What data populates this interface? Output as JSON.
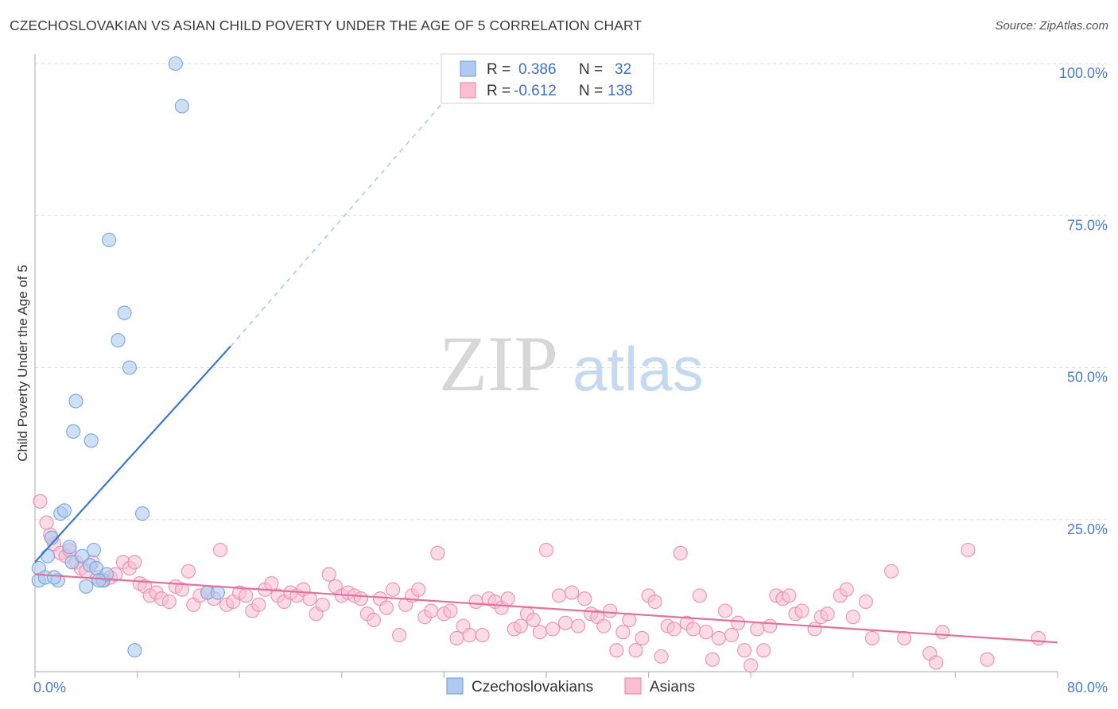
{
  "title": "CZECHOSLOVAKIAN VS ASIAN CHILD POVERTY UNDER THE AGE OF 5 CORRELATION CHART",
  "source": "Source: ZipAtlas.com",
  "watermark": {
    "zip": "ZIP",
    "atlas": "atlas"
  },
  "colors": {
    "blue_fill": "#aecbef",
    "blue_stroke": "#7aa6df",
    "blue_line": "#3a78d0",
    "pink_fill": "#f7bfd1",
    "pink_stroke": "#ee8fb0",
    "pink_line": "#e2719b",
    "grid": "#dcdcdc",
    "axis_text": "#4a7cc9"
  },
  "stats": {
    "r_label": "R =",
    "n_label": "N =",
    "blue": {
      "r": "0.386",
      "n": "32"
    },
    "pink": {
      "r": "-0.612",
      "n": "138"
    }
  },
  "legend": {
    "blue": "Czechoslovakians",
    "pink": "Asians"
  },
  "chart_data": {
    "type": "scatter",
    "title": "CZECHOSLOVAKIAN VS ASIAN CHILD POVERTY UNDER THE AGE OF 5 CORRELATION CHART",
    "xlabel": "",
    "ylabel": "Child Poverty Under the Age of 5",
    "xlim": [
      0,
      80
    ],
    "ylim": [
      0,
      100
    ],
    "x_ticks": [
      {
        "value": 0,
        "label": "0.0%"
      },
      {
        "value": 80,
        "label": "80.0%"
      }
    ],
    "y_ticks": [
      {
        "value": 25,
        "label": "25.0%"
      },
      {
        "value": 50,
        "label": "50.0%"
      },
      {
        "value": 75,
        "label": "75.0%"
      },
      {
        "value": 100,
        "label": "100.0%"
      }
    ],
    "grid": true,
    "series": [
      {
        "name": "Czechoslovakians",
        "color": "#aecbef",
        "points": [
          [
            0.3,
            17.0
          ],
          [
            0.3,
            15.0
          ],
          [
            0.8,
            15.5
          ],
          [
            1.0,
            19.0
          ],
          [
            1.3,
            22.0
          ],
          [
            1.8,
            15.0
          ],
          [
            2.0,
            26.0
          ],
          [
            2.3,
            26.5
          ],
          [
            2.7,
            20.5
          ],
          [
            2.9,
            18.0
          ],
          [
            3.0,
            39.5
          ],
          [
            3.2,
            44.5
          ],
          [
            3.7,
            19.0
          ],
          [
            4.0,
            14.0
          ],
          [
            4.3,
            17.5
          ],
          [
            4.4,
            38.0
          ],
          [
            4.6,
            20.0
          ],
          [
            4.8,
            17.0
          ],
          [
            5.3,
            15.0
          ],
          [
            5.6,
            16.0
          ],
          [
            5.8,
            71.0
          ],
          [
            6.5,
            54.5
          ],
          [
            7.0,
            59.0
          ],
          [
            7.4,
            50.0
          ],
          [
            7.8,
            3.5
          ],
          [
            8.4,
            26.0
          ],
          [
            11.0,
            100.0
          ],
          [
            11.5,
            93.0
          ],
          [
            13.5,
            13.0
          ],
          [
            14.3,
            13.0
          ],
          [
            1.5,
            15.5
          ],
          [
            5.0,
            15.0
          ]
        ],
        "trend": {
          "x": [
            0.0,
            15.3
          ],
          "y": [
            18.0,
            53.5
          ],
          "dashed_to": {
            "x": 32.5,
            "y": 95.0
          }
        }
      },
      {
        "name": "Asians",
        "color": "#f7bfd1",
        "points": [
          [
            0.4,
            28.0
          ],
          [
            0.9,
            24.5
          ],
          [
            1.2,
            22.5
          ],
          [
            1.5,
            21.0
          ],
          [
            2.0,
            19.5
          ],
          [
            2.4,
            19.0
          ],
          [
            2.7,
            20.0
          ],
          [
            3.2,
            18.0
          ],
          [
            3.6,
            17.0
          ],
          [
            4.0,
            16.5
          ],
          [
            4.5,
            18.0
          ],
          [
            4.9,
            15.5
          ],
          [
            5.4,
            15.0
          ],
          [
            5.9,
            15.5
          ],
          [
            6.3,
            16.0
          ],
          [
            6.9,
            18.0
          ],
          [
            7.4,
            17.0
          ],
          [
            7.8,
            18.0
          ],
          [
            8.2,
            14.5
          ],
          [
            8.6,
            14.0
          ],
          [
            9.0,
            12.5
          ],
          [
            9.5,
            13.0
          ],
          [
            9.9,
            12.0
          ],
          [
            10.5,
            11.5
          ],
          [
            11.0,
            14.0
          ],
          [
            11.5,
            13.5
          ],
          [
            12.0,
            16.5
          ],
          [
            12.4,
            11.0
          ],
          [
            12.9,
            12.5
          ],
          [
            13.5,
            13.0
          ],
          [
            14.0,
            12.0
          ],
          [
            14.5,
            20.0
          ],
          [
            15.0,
            11.0
          ],
          [
            15.5,
            11.5
          ],
          [
            16.0,
            13.0
          ],
          [
            16.5,
            12.5
          ],
          [
            17.0,
            10.0
          ],
          [
            17.5,
            11.0
          ],
          [
            18.0,
            13.5
          ],
          [
            18.5,
            14.5
          ],
          [
            19.0,
            12.5
          ],
          [
            19.5,
            11.5
          ],
          [
            20.0,
            13.0
          ],
          [
            20.5,
            12.5
          ],
          [
            21.0,
            13.5
          ],
          [
            21.5,
            12.0
          ],
          [
            22.0,
            9.5
          ],
          [
            22.5,
            11.0
          ],
          [
            23.0,
            16.0
          ],
          [
            23.5,
            14.0
          ],
          [
            24.0,
            12.5
          ],
          [
            24.5,
            13.0
          ],
          [
            25.0,
            12.5
          ],
          [
            25.5,
            12.0
          ],
          [
            26.0,
            9.5
          ],
          [
            26.5,
            8.5
          ],
          [
            27.0,
            12.0
          ],
          [
            27.5,
            10.5
          ],
          [
            28.0,
            13.5
          ],
          [
            28.5,
            6.0
          ],
          [
            29.0,
            11.0
          ],
          [
            29.5,
            12.5
          ],
          [
            30.0,
            13.5
          ],
          [
            30.5,
            9.0
          ],
          [
            31.0,
            10.0
          ],
          [
            31.5,
            19.5
          ],
          [
            32.0,
            9.5
          ],
          [
            32.5,
            10.0
          ],
          [
            33.0,
            5.5
          ],
          [
            33.5,
            7.5
          ],
          [
            34.0,
            6.0
          ],
          [
            34.5,
            11.5
          ],
          [
            35.0,
            6.0
          ],
          [
            35.5,
            12.0
          ],
          [
            36.0,
            11.5
          ],
          [
            36.5,
            10.5
          ],
          [
            37.0,
            12.0
          ],
          [
            37.5,
            7.0
          ],
          [
            38.0,
            7.5
          ],
          [
            38.5,
            9.5
          ],
          [
            39.0,
            8.5
          ],
          [
            39.5,
            6.5
          ],
          [
            40.0,
            20.0
          ],
          [
            40.5,
            7.0
          ],
          [
            41.0,
            12.5
          ],
          [
            41.5,
            8.0
          ],
          [
            42.0,
            13.0
          ],
          [
            42.5,
            7.5
          ],
          [
            43.0,
            12.0
          ],
          [
            43.5,
            9.5
          ],
          [
            44.0,
            9.0
          ],
          [
            44.5,
            7.5
          ],
          [
            45.0,
            10.0
          ],
          [
            45.5,
            3.5
          ],
          [
            46.0,
            6.5
          ],
          [
            46.5,
            8.5
          ],
          [
            47.0,
            3.5
          ],
          [
            47.5,
            5.5
          ],
          [
            48.0,
            12.5
          ],
          [
            48.5,
            11.5
          ],
          [
            49.0,
            2.5
          ],
          [
            49.5,
            7.5
          ],
          [
            50.0,
            7.0
          ],
          [
            50.5,
            19.5
          ],
          [
            51.0,
            8.0
          ],
          [
            51.5,
            7.0
          ],
          [
            52.0,
            12.5
          ],
          [
            52.5,
            6.5
          ],
          [
            53.0,
            2.0
          ],
          [
            53.5,
            5.5
          ],
          [
            54.0,
            10.0
          ],
          [
            54.5,
            6.0
          ],
          [
            55.0,
            8.0
          ],
          [
            55.5,
            3.5
          ],
          [
            56.0,
            1.0
          ],
          [
            56.5,
            7.0
          ],
          [
            57.0,
            3.5
          ],
          [
            57.5,
            7.5
          ],
          [
            58.0,
            12.5
          ],
          [
            58.5,
            12.0
          ],
          [
            59.0,
            12.5
          ],
          [
            59.5,
            9.5
          ],
          [
            60.0,
            10.0
          ],
          [
            61.0,
            7.0
          ],
          [
            61.5,
            9.0
          ],
          [
            62.0,
            9.5
          ],
          [
            63.0,
            12.5
          ],
          [
            63.5,
            13.5
          ],
          [
            64.0,
            9.0
          ],
          [
            65.0,
            11.5
          ],
          [
            65.5,
            5.5
          ],
          [
            67.0,
            16.5
          ],
          [
            68.0,
            5.5
          ],
          [
            70.0,
            3.0
          ],
          [
            70.5,
            1.5
          ],
          [
            71.0,
            6.5
          ],
          [
            73.0,
            20.0
          ],
          [
            74.5,
            2.0
          ],
          [
            78.5,
            5.5
          ]
        ],
        "trend": {
          "x": [
            0.0,
            80.0
          ],
          "y": [
            16.0,
            4.8
          ]
        }
      }
    ]
  }
}
